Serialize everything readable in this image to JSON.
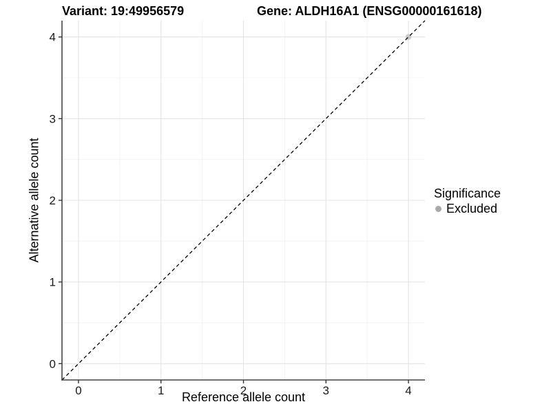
{
  "header": {
    "variant_title": "Variant: 19:49956579",
    "gene_title": "Gene: ALDH16A1 (ENSG00000161618)"
  },
  "legend": {
    "title": "Significance",
    "items": [
      {
        "label": "Excluded",
        "color": "#a9a9a9"
      }
    ]
  },
  "chart_data": {
    "type": "scatter",
    "title_left": "Variant: 19:49956579",
    "title_right": "Gene: ALDH16A1 (ENSG00000161618)",
    "xlabel": "Reference allele count",
    "ylabel": "Alternative allele count",
    "xlim": [
      -0.2,
      4.2
    ],
    "ylim": [
      -0.2,
      4.2
    ],
    "x_ticks": [
      0,
      1,
      2,
      3,
      4
    ],
    "y_ticks": [
      0,
      1,
      2,
      3,
      4
    ],
    "x_minor_ticks": [
      0.5,
      1.5,
      2.5,
      3.5
    ],
    "y_minor_ticks": [
      0.5,
      1.5,
      2.5,
      3.5
    ],
    "grid": "major+minor",
    "legend_position": "right",
    "series": [
      {
        "name": "Excluded",
        "color": "#a9a9a9",
        "point_opacity": 0.55,
        "points": [
          {
            "x": 4,
            "y": 4
          }
        ]
      }
    ],
    "reference_line": {
      "type": "identity",
      "style": "dashed",
      "color": "#000000",
      "from": [
        -0.2,
        -0.2
      ],
      "to": [
        4.2,
        4.2
      ]
    },
    "colors": {
      "grid_major": "#e3e3e3",
      "grid_minor": "#f2f2f2",
      "axis_line": "#444444",
      "tick_mark": "#333333",
      "tick_label": "#1a1a1a"
    }
  }
}
